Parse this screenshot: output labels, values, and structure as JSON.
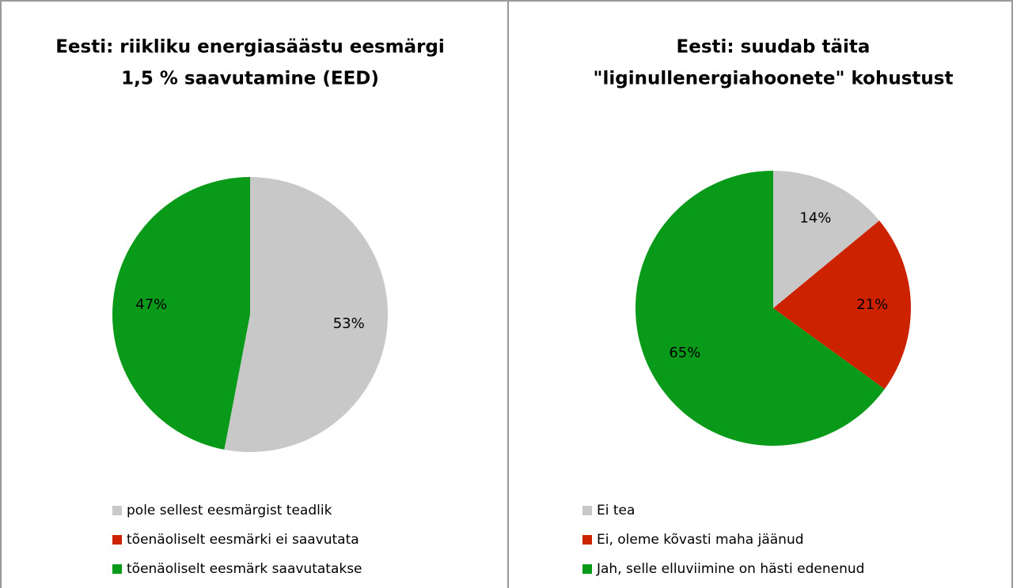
{
  "chart_data": [
    {
      "type": "pie",
      "title": [
        "Eesti: riikliku energiasäästu eesmärgi",
        "1,5 % saavutamine (EED)"
      ],
      "categories": [
        "pole sellest eesmärgist teadlik",
        "tõenäoliselt eesmärki ei saavutata",
        "tõenäoliselt eesmärk saavutatakse"
      ],
      "values": [
        53,
        0,
        47
      ],
      "value_labels": [
        "53%",
        null,
        "47%"
      ],
      "colors": [
        "#c8c8c8",
        "#cc2200",
        "#0a9a1a"
      ],
      "legend": "bottom"
    },
    {
      "type": "pie",
      "title": [
        "Eesti: suudab täita",
        "\"liginullenergiahoonete\" kohustust"
      ],
      "categories": [
        "Ei tea",
        "Ei, oleme kõvasti maha jäänud",
        "Jah, selle elluviimine on hästi edenenud"
      ],
      "values": [
        14,
        21,
        65
      ],
      "value_labels": [
        "14%",
        "21%",
        "65%"
      ],
      "colors": [
        "#c8c8c8",
        "#cc2200",
        "#0a9a1a"
      ],
      "legend": "bottom"
    }
  ]
}
